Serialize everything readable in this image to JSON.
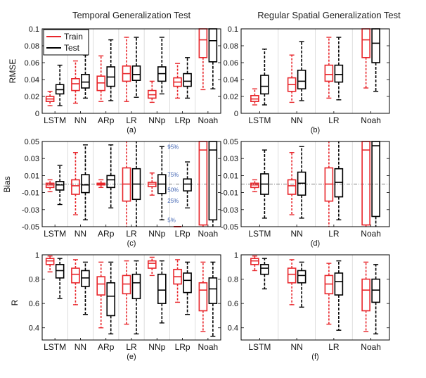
{
  "column_titles": [
    "Temporal Generalization Test",
    "Regular Spatial Generalization Test"
  ],
  "legend": {
    "entries": [
      {
        "label": "Train",
        "color": "#e8262b"
      },
      {
        "label": "Test",
        "color": "#000000"
      }
    ]
  },
  "chart_data": [
    {
      "type": "boxplot",
      "panel_label": "(a)",
      "ylabel": "RMSE",
      "categories": [
        "LSTM",
        "NN",
        "ARp",
        "LR",
        "NNp",
        "LRp",
        "Noah"
      ],
      "ylim": [
        0,
        0.1
      ],
      "yticks": [
        0,
        0.02,
        0.04,
        0.06,
        0.08,
        0.1
      ],
      "ytick_labels": [
        "0",
        "0.02",
        "0.04",
        "0.06",
        "0.08",
        "0.1"
      ],
      "series": [
        {
          "name": "Train",
          "boxes": [
            [
              0.009,
              0.014,
              0.017,
              0.02,
              0.026
            ],
            [
              0.012,
              0.027,
              0.035,
              0.041,
              0.062
            ],
            [
              0.014,
              0.027,
              0.036,
              0.044,
              0.068
            ],
            [
              0.014,
              0.038,
              0.047,
              0.056,
              0.09
            ],
            [
              0.013,
              0.018,
              0.022,
              0.027,
              0.038
            ],
            [
              0.018,
              0.032,
              0.037,
              0.042,
              0.059
            ],
            [
              0.028,
              0.066,
              0.087,
              0.1,
              0.1
            ]
          ]
        },
        {
          "name": "Test",
          "boxes": [
            [
              0.009,
              0.023,
              0.028,
              0.034,
              0.057
            ],
            [
              0.018,
              0.03,
              0.037,
              0.046,
              0.069
            ],
            [
              0.015,
              0.032,
              0.043,
              0.055,
              0.087
            ],
            [
              0.019,
              0.039,
              0.046,
              0.056,
              0.09
            ],
            [
              0.023,
              0.038,
              0.047,
              0.055,
              0.09
            ],
            [
              0.018,
              0.032,
              0.038,
              0.047,
              0.066
            ],
            [
              0.029,
              0.061,
              0.086,
              0.1,
              0.1
            ]
          ]
        }
      ],
      "annotations": []
    },
    {
      "type": "boxplot",
      "panel_label": "(b)",
      "ylabel": "",
      "categories": [
        "LSTM",
        "NN",
        "LR",
        "Noah"
      ],
      "ylim": [
        0,
        0.1
      ],
      "yticks": [
        0,
        0.02,
        0.04,
        0.06,
        0.08,
        0.1
      ],
      "ytick_labels": [
        "0",
        "0.02",
        "0.04",
        "0.06",
        "0.08",
        "0.1"
      ],
      "series": [
        {
          "name": "Train",
          "boxes": [
            [
              0.01,
              0.014,
              0.017,
              0.021,
              0.029
            ],
            [
              0.013,
              0.026,
              0.034,
              0.042,
              0.069
            ],
            [
              0.018,
              0.038,
              0.046,
              0.057,
              0.09
            ],
            [
              0.03,
              0.066,
              0.087,
              0.1,
              0.1
            ]
          ]
        },
        {
          "name": "Test",
          "boxes": [
            [
              0.01,
              0.023,
              0.032,
              0.045,
              0.076
            ],
            [
              0.015,
              0.029,
              0.038,
              0.051,
              0.085
            ],
            [
              0.016,
              0.037,
              0.046,
              0.057,
              0.09
            ],
            [
              0.026,
              0.06,
              0.083,
              0.1,
              0.1
            ]
          ]
        }
      ],
      "annotations": []
    },
    {
      "type": "boxplot",
      "panel_label": "(c)",
      "ylabel": "Bias",
      "categories": [
        "LSTM",
        "NN",
        "ARp",
        "LR",
        "NNp",
        "LRp",
        "Noah"
      ],
      "ylim": [
        -0.05,
        0.05
      ],
      "yticks": [
        -0.05,
        -0.03,
        -0.01,
        0.01,
        0.03,
        0.05
      ],
      "ytick_labels": [
        "-0.05",
        "-0.03",
        "-0.01",
        "0.01",
        "0.03",
        "0.05"
      ],
      "series": [
        {
          "name": "Train",
          "boxes": [
            [
              -0.009,
              -0.004,
              -0.001,
              0.001,
              0.005
            ],
            [
              -0.036,
              -0.012,
              -0.002,
              0.005,
              0.037
            ],
            [
              -0.004,
              -0.001,
              0.0,
              0.001,
              0.005
            ],
            [
              -0.05,
              -0.02,
              0.0,
              0.019,
              0.05
            ],
            [
              -0.013,
              -0.003,
              0.0,
              0.002,
              0.013
            ],
            [
              -0.05,
              -0.05,
              -0.05,
              -0.05,
              -0.05
            ],
            [
              -0.05,
              -0.048,
              0.04,
              0.05,
              0.05
            ]
          ]
        },
        {
          "name": "Test",
          "boxes": [
            [
              -0.024,
              -0.007,
              -0.001,
              0.003,
              0.022
            ],
            [
              -0.042,
              -0.01,
              -0.001,
              0.011,
              0.046
            ],
            [
              -0.028,
              -0.004,
              0.005,
              0.01,
              0.046
            ],
            [
              -0.05,
              -0.018,
              0.0,
              0.018,
              0.05
            ],
            [
              -0.042,
              -0.011,
              0.0,
              0.011,
              0.044
            ],
            [
              -0.028,
              -0.008,
              0.0,
              0.006,
              0.026
            ],
            [
              -0.05,
              -0.042,
              0.04,
              0.05,
              0.05
            ]
          ]
        }
      ],
      "annotations": [
        "95%",
        "75%",
        "50%",
        "25%",
        "5%"
      ]
    },
    {
      "type": "boxplot",
      "panel_label": "(d)",
      "ylabel": "",
      "categories": [
        "LSTM",
        "NN",
        "LR",
        "Noah"
      ],
      "ylim": [
        -0.05,
        0.05
      ],
      "yticks": [
        -0.05,
        -0.03,
        -0.01,
        0.01,
        0.03,
        0.05
      ],
      "ytick_labels": [
        "-0.05",
        "-0.03",
        "-0.01",
        "0.01",
        "0.03",
        "0.05"
      ],
      "series": [
        {
          "name": "Train",
          "boxes": [
            [
              -0.009,
              -0.004,
              -0.001,
              0.001,
              0.005
            ],
            [
              -0.036,
              -0.012,
              -0.002,
              0.005,
              0.037
            ],
            [
              -0.05,
              -0.02,
              0.0,
              0.019,
              0.05
            ],
            [
              -0.05,
              -0.048,
              0.04,
              0.05,
              0.05
            ]
          ]
        },
        {
          "name": "Test",
          "boxes": [
            [
              -0.04,
              -0.012,
              0.0,
              0.012,
              0.04
            ],
            [
              -0.04,
              -0.013,
              0.001,
              0.014,
              0.044
            ],
            [
              -0.042,
              -0.015,
              0.002,
              0.018,
              0.05
            ],
            [
              -0.05,
              -0.038,
              0.045,
              0.05,
              0.05
            ]
          ]
        }
      ],
      "annotations": []
    },
    {
      "type": "boxplot",
      "panel_label": "(e)",
      "ylabel": "R",
      "categories": [
        "LSTM",
        "NN",
        "ARp",
        "LR",
        "NNp",
        "LRp",
        "Noah"
      ],
      "ylim": [
        0.3,
        1.0
      ],
      "yticks": [
        0.4,
        0.6,
        0.8,
        1.0
      ],
      "ytick_labels": [
        "0.4",
        "0.6",
        "0.8",
        "1"
      ],
      "series": [
        {
          "name": "Train",
          "boxes": [
            [
              0.86,
              0.92,
              0.95,
              0.97,
              0.99
            ],
            [
              0.59,
              0.77,
              0.84,
              0.89,
              0.96
            ],
            [
              0.4,
              0.67,
              0.76,
              0.82,
              0.94
            ],
            [
              0.43,
              0.68,
              0.76,
              0.83,
              0.95
            ],
            [
              0.83,
              0.89,
              0.93,
              0.95,
              0.98
            ],
            [
              0.61,
              0.76,
              0.82,
              0.88,
              0.96
            ],
            [
              0.37,
              0.54,
              0.71,
              0.77,
              0.94
            ]
          ]
        },
        {
          "name": "Test",
          "boxes": [
            [
              0.64,
              0.81,
              0.87,
              0.92,
              0.97
            ],
            [
              0.51,
              0.74,
              0.81,
              0.87,
              0.94
            ],
            [
              0.35,
              0.5,
              0.66,
              0.77,
              0.94
            ],
            [
              0.35,
              0.64,
              0.77,
              0.84,
              0.95
            ],
            [
              0.44,
              0.6,
              0.71,
              0.84,
              0.95
            ],
            [
              0.51,
              0.69,
              0.79,
              0.85,
              0.94
            ],
            [
              0.33,
              0.6,
              0.72,
              0.81,
              0.94
            ]
          ]
        }
      ],
      "annotations": []
    },
    {
      "type": "boxplot",
      "panel_label": "(f)",
      "ylabel": "",
      "categories": [
        "LSTM",
        "NN",
        "LR",
        "Noah"
      ],
      "ylim": [
        0.3,
        1.0
      ],
      "yticks": [
        0.4,
        0.6,
        0.8,
        1.0
      ],
      "ytick_labels": [
        "0.4",
        "0.6",
        "0.8",
        "1"
      ],
      "series": [
        {
          "name": "Train",
          "boxes": [
            [
              0.87,
              0.92,
              0.95,
              0.97,
              0.99
            ],
            [
              0.59,
              0.77,
              0.84,
              0.89,
              0.96
            ],
            [
              0.43,
              0.68,
              0.76,
              0.83,
              0.93
            ],
            [
              0.37,
              0.54,
              0.71,
              0.8,
              0.94
            ]
          ]
        },
        {
          "name": "Test",
          "boxes": [
            [
              0.72,
              0.84,
              0.89,
              0.92,
              0.97
            ],
            [
              0.57,
              0.77,
              0.83,
              0.87,
              0.94
            ],
            [
              0.38,
              0.67,
              0.78,
              0.85,
              0.95
            ],
            [
              0.35,
              0.61,
              0.71,
              0.8,
              0.92
            ]
          ]
        }
      ],
      "annotations": []
    }
  ]
}
